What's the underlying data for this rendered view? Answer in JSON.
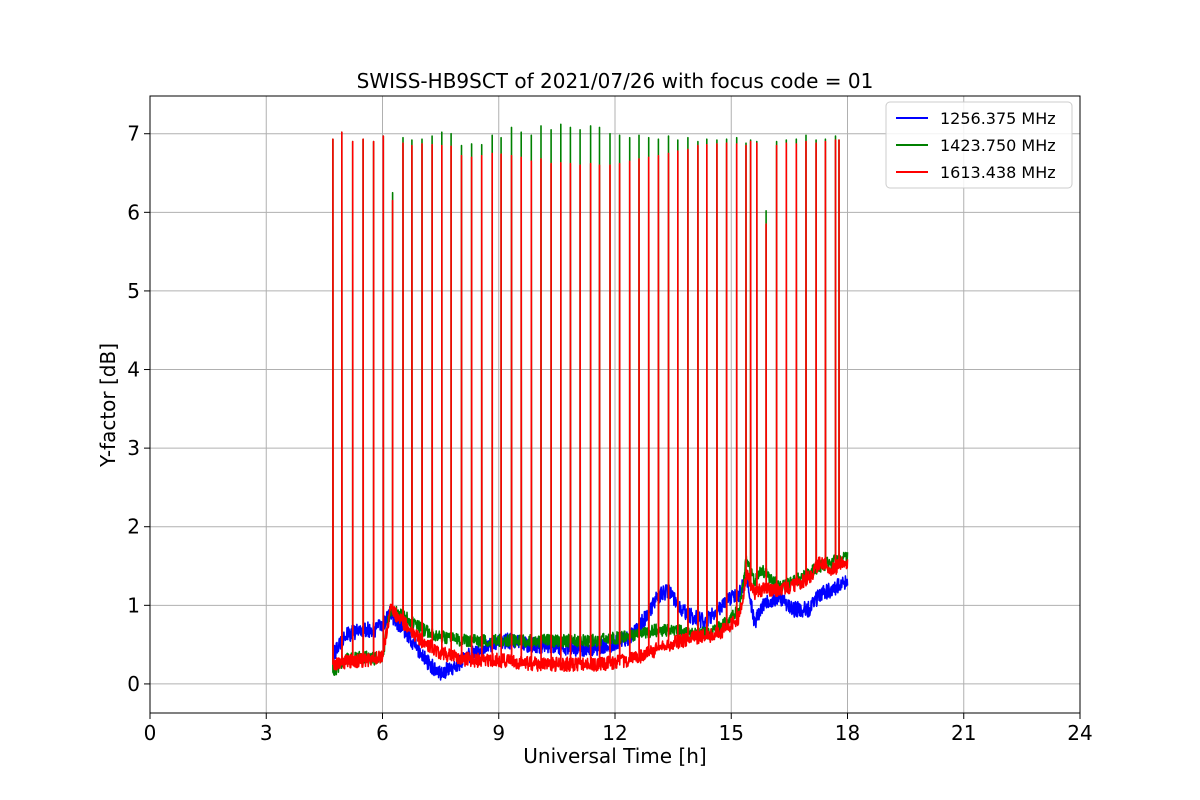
{
  "chart_data": {
    "type": "line",
    "title": "SWISS-HB9SCT of 2021/07/26 with focus code = 01",
    "xlabel": "Universal Time [h]",
    "ylabel": "Y-factor [dB]",
    "xlim": [
      0,
      24
    ],
    "ylim": [
      -0.37,
      7.48
    ],
    "xticks": [
      0,
      3,
      6,
      9,
      12,
      15,
      18,
      21,
      24
    ],
    "yticks": [
      0,
      1,
      2,
      3,
      4,
      5,
      6,
      7
    ],
    "grid": true,
    "legend_position": "top-right",
    "series": [
      {
        "name": "1256.375 MHz",
        "color": "#0000ff",
        "baseline": {
          "x": [
            4.72,
            5.0,
            5.5,
            5.8,
            6.0,
            6.2,
            6.6,
            6.9,
            7.2,
            7.5,
            7.8,
            8.2,
            8.7,
            9.2,
            9.8,
            10.3,
            10.9,
            11.4,
            11.9,
            12.4,
            12.8,
            13.1,
            13.4,
            13.7,
            14.0,
            14.3,
            14.6,
            14.9,
            15.2,
            15.4,
            15.6,
            15.8,
            16.2,
            16.6,
            17.0,
            17.3,
            17.6,
            17.9,
            18.0
          ],
          "y": [
            0.35,
            0.6,
            0.7,
            0.68,
            0.75,
            0.9,
            0.65,
            0.45,
            0.25,
            0.15,
            0.2,
            0.35,
            0.5,
            0.55,
            0.5,
            0.48,
            0.45,
            0.45,
            0.5,
            0.6,
            0.85,
            1.1,
            1.2,
            0.95,
            0.85,
            0.8,
            0.9,
            1.05,
            1.15,
            1.35,
            0.75,
            1.0,
            1.1,
            0.95,
            0.95,
            1.15,
            1.2,
            1.3,
            1.3
          ]
        },
        "noise": 0.1
      },
      {
        "name": "1423.750 MHz",
        "color": "#008000",
        "baseline": {
          "x": [
            4.72,
            5.0,
            5.5,
            5.8,
            6.0,
            6.2,
            6.6,
            7.0,
            7.5,
            8.0,
            8.5,
            9.0,
            9.5,
            10.0,
            10.5,
            11.0,
            11.5,
            12.0,
            12.5,
            13.0,
            13.5,
            14.0,
            14.5,
            14.9,
            15.2,
            15.4,
            15.6,
            15.8,
            16.2,
            16.6,
            17.0,
            17.3,
            17.6,
            17.9,
            18.0
          ],
          "y": [
            0.15,
            0.3,
            0.35,
            0.32,
            0.35,
            0.95,
            0.85,
            0.7,
            0.6,
            0.55,
            0.55,
            0.55,
            0.55,
            0.55,
            0.55,
            0.55,
            0.55,
            0.58,
            0.62,
            0.68,
            0.68,
            0.65,
            0.65,
            0.8,
            0.95,
            1.6,
            1.3,
            1.45,
            1.25,
            1.3,
            1.4,
            1.5,
            1.55,
            1.6,
            1.6
          ]
        },
        "noise": 0.08,
        "spike_peaks": [
          6.93,
          7.02,
          6.9,
          6.93,
          6.9,
          6.97,
          6.25,
          6.95,
          6.92,
          6.93,
          6.97,
          7.02,
          7.0,
          6.85,
          6.87,
          6.86,
          6.98,
          6.95,
          7.08,
          7.02,
          6.98,
          7.1,
          7.05,
          7.12,
          7.08,
          7.05,
          7.1,
          7.08,
          7.0,
          6.98,
          6.95,
          6.98,
          6.95,
          6.93,
          6.97,
          6.92,
          6.95,
          6.9,
          6.93,
          6.92,
          6.93,
          6.95,
          6.88,
          6.92,
          6.9,
          6.02,
          6.9,
          6.92,
          6.93,
          6.98,
          6.92,
          6.93,
          6.97,
          6.92
        ]
      },
      {
        "name": "1613.438 MHz",
        "color": "#ff0000",
        "baseline": {
          "x": [
            4.72,
            5.0,
            5.5,
            5.8,
            6.0,
            6.2,
            6.6,
            7.0,
            7.5,
            8.0,
            8.5,
            9.0,
            9.5,
            10.0,
            10.5,
            11.0,
            11.5,
            12.0,
            12.5,
            13.0,
            13.5,
            14.0,
            14.5,
            14.9,
            15.2,
            15.4,
            15.6,
            15.8,
            16.2,
            16.6,
            17.0,
            17.3,
            17.6,
            17.9,
            18.0
          ],
          "y": [
            0.25,
            0.28,
            0.3,
            0.32,
            0.35,
            0.95,
            0.75,
            0.55,
            0.4,
            0.32,
            0.3,
            0.3,
            0.28,
            0.25,
            0.25,
            0.25,
            0.25,
            0.27,
            0.32,
            0.42,
            0.52,
            0.58,
            0.62,
            0.7,
            0.85,
            1.4,
            1.15,
            1.2,
            1.2,
            1.25,
            1.35,
            1.55,
            1.45,
            1.55,
            1.55
          ]
        },
        "noise": 0.09,
        "spike_peaks": [
          6.93,
          7.02,
          6.9,
          6.93,
          6.9,
          6.97,
          6.15,
          6.88,
          6.85,
          6.87,
          6.86,
          6.85,
          6.84,
          6.72,
          6.7,
          6.72,
          6.75,
          6.74,
          6.72,
          6.7,
          6.65,
          6.68,
          6.62,
          6.63,
          6.62,
          6.6,
          6.62,
          6.6,
          6.6,
          6.62,
          6.65,
          6.68,
          6.7,
          6.72,
          6.75,
          6.78,
          6.8,
          6.85,
          6.86,
          6.87,
          6.88,
          6.87,
          6.85,
          6.9,
          6.88,
          5.85,
          6.85,
          6.88,
          6.87,
          6.9,
          6.88,
          6.9,
          6.92,
          6.92
        ]
      }
    ],
    "spike_times": [
      4.72,
      4.95,
      5.23,
      5.5,
      5.77,
      6.02,
      6.26,
      6.53,
      6.76,
      7.02,
      7.28,
      7.53,
      7.77,
      8.04,
      8.3,
      8.56,
      8.83,
      9.06,
      9.33,
      9.58,
      9.84,
      10.09,
      10.35,
      10.6,
      10.85,
      11.1,
      11.37,
      11.6,
      11.87,
      12.12,
      12.38,
      12.62,
      12.87,
      13.12,
      13.38,
      13.62,
      13.88,
      14.14,
      14.37,
      14.63,
      14.88,
      15.14,
      15.38,
      15.5,
      15.66,
      15.9,
      16.17,
      16.42,
      16.68,
      16.93,
      17.19,
      17.43,
      17.69,
      17.78
    ]
  }
}
